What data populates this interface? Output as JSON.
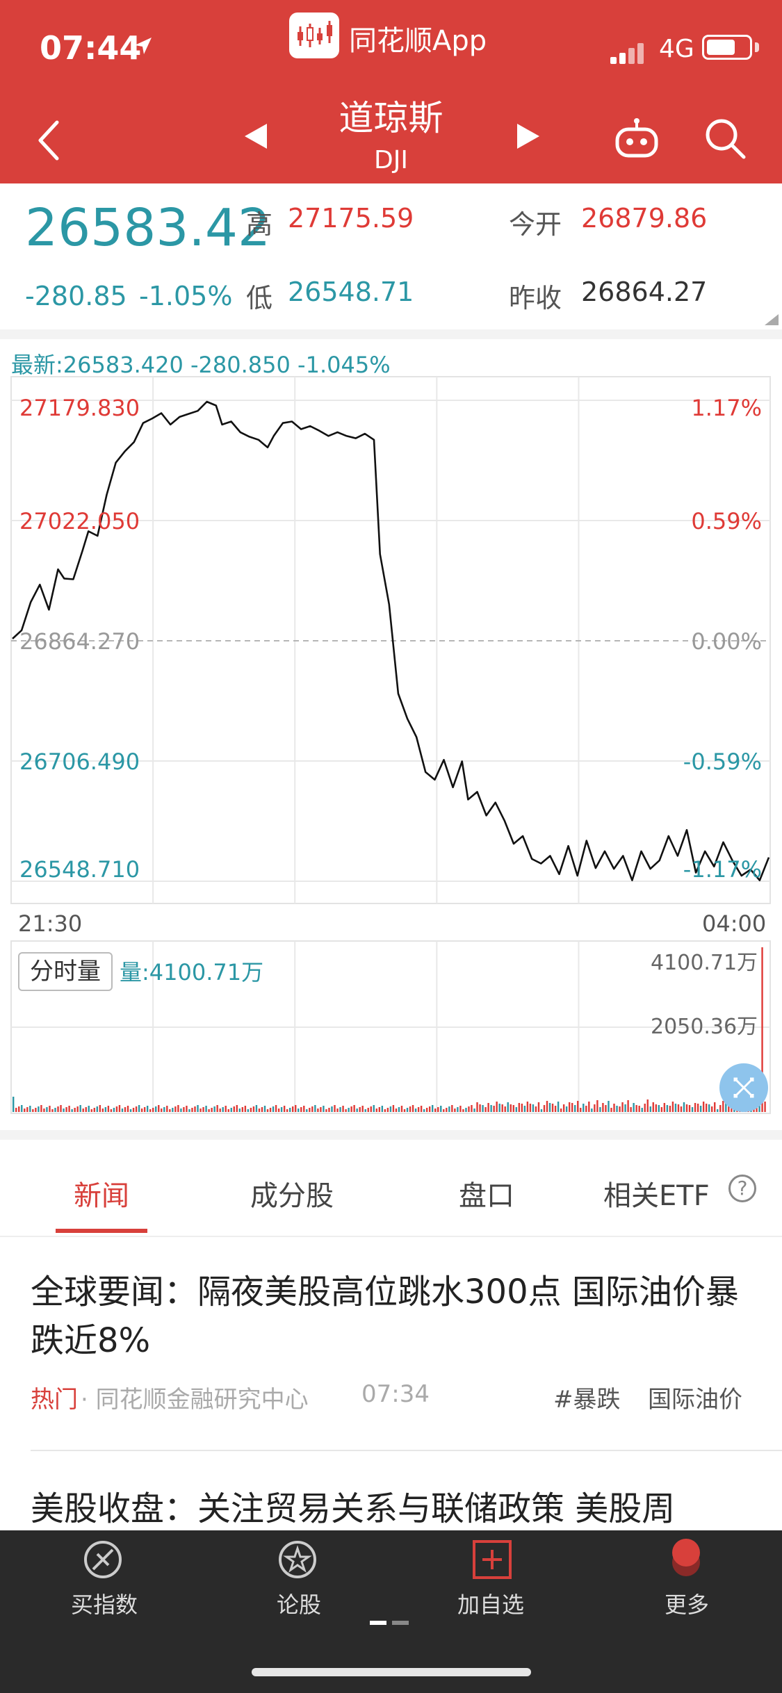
{
  "status_bar": {
    "time": "07:44",
    "app_name": "同花顺App",
    "network": "4G"
  },
  "nav": {
    "title": "道琼斯",
    "subtitle": "DJI"
  },
  "quote": {
    "price": "26583.42",
    "change": "-280.85",
    "change_pct": "-1.05%",
    "high_label": "高",
    "high": "27175.59",
    "low_label": "低",
    "low": "26548.71",
    "open_label": "今开",
    "open": "26879.86",
    "prev_close_label": "昨收",
    "prev_close": "26864.27"
  },
  "chart": {
    "latest_line": "最新:26583.420 -280.850 -1.045%",
    "time_start": "21:30",
    "time_end": "04:00",
    "volume_chip": "分时量",
    "volume_label": "量:4100.71万",
    "volume_max": "4100.71万",
    "volume_mid": "2050.36万"
  },
  "chart_data": {
    "type": "line",
    "title": "",
    "xlabel": "",
    "ylabel": "",
    "ylim": [
      26548.71,
      27179.83
    ],
    "reference": 26864.27,
    "y_ticks_left": [
      "27179.830",
      "27022.050",
      "26864.270",
      "26706.490",
      "26548.710"
    ],
    "y_ticks_right": [
      "1.17%",
      "0.59%",
      "0.00%",
      "-0.59%",
      "-1.17%"
    ],
    "x_ticks": [
      "21:30",
      "04:00"
    ],
    "grid": true,
    "series": [
      {
        "x": [
          0,
          3,
          6,
          9,
          12,
          15,
          17,
          20,
          23,
          25,
          28,
          31,
          34,
          37,
          40,
          43,
          46,
          49,
          52,
          55,
          58,
          61,
          64,
          67,
          69,
          72,
          75,
          78,
          81,
          84,
          86,
          89,
          92,
          95,
          98,
          101,
          104,
          107,
          110,
          113,
          116,
          119,
          121,
          124,
          127,
          130,
          133,
          136,
          139,
          142,
          145,
          148,
          150,
          153,
          156,
          159,
          162,
          165,
          168,
          171,
          174,
          177,
          180,
          183,
          186,
          189,
          192,
          195,
          198,
          201,
          204,
          207,
          210,
          213,
          216,
          219,
          222,
          225,
          228,
          231,
          234,
          237,
          240,
          243,
          246,
          249
        ],
        "y": [
          26867,
          26878,
          26915,
          26938,
          26905,
          26958,
          26946,
          26945,
          26982,
          27008,
          27002,
          27056,
          27098,
          27113,
          27125,
          27150,
          27156,
          27163,
          27148,
          27158,
          27162,
          27166,
          27178,
          27173,
          27148,
          27152,
          27138,
          27132,
          27128,
          27118,
          27133,
          27150,
          27152,
          27142,
          27146,
          27140,
          27133,
          27138,
          27133,
          27130,
          27136,
          27128,
          26978,
          26912,
          26795,
          26762,
          26738,
          26692,
          26682,
          26708,
          26672,
          26706,
          26656,
          26666,
          26635,
          26652,
          26628,
          26598,
          26608,
          26578,
          26572,
          26582,
          26558,
          26595,
          26556,
          26602,
          26566,
          26588,
          26565,
          26582,
          26550,
          26588,
          26565,
          26576,
          26608,
          26582,
          26616,
          26560,
          26588,
          26568,
          26600,
          26576,
          26556,
          26564,
          26550,
          26580
        ]
      }
    ]
  },
  "tabs": [
    {
      "label": "新闻"
    },
    {
      "label": "成分股"
    },
    {
      "label": "盘口"
    },
    {
      "label": "相关ETF"
    }
  ],
  "news": [
    {
      "title": "全球要闻：隔夜美股高位跳水300点 国际油价暴跌近8%",
      "tag": "热门",
      "source": "· 同花顺金融研究中心",
      "time": "07:34",
      "topics": [
        "#暴跌",
        "国际油价"
      ]
    },
    {
      "title": "美股收盘：关注贸易关系与联储政策 美股周"
    }
  ],
  "bottom_bar": [
    {
      "label": "买指数",
      "icon": "compass-icon"
    },
    {
      "label": "论股",
      "icon": "star-circle-icon"
    },
    {
      "label": "加自选",
      "icon": "add-box-icon"
    },
    {
      "label": "更多",
      "icon": "more-icon"
    }
  ],
  "colors": {
    "brand": "#d8403b",
    "teal": "#2b97a5",
    "up": "#df3a36"
  }
}
